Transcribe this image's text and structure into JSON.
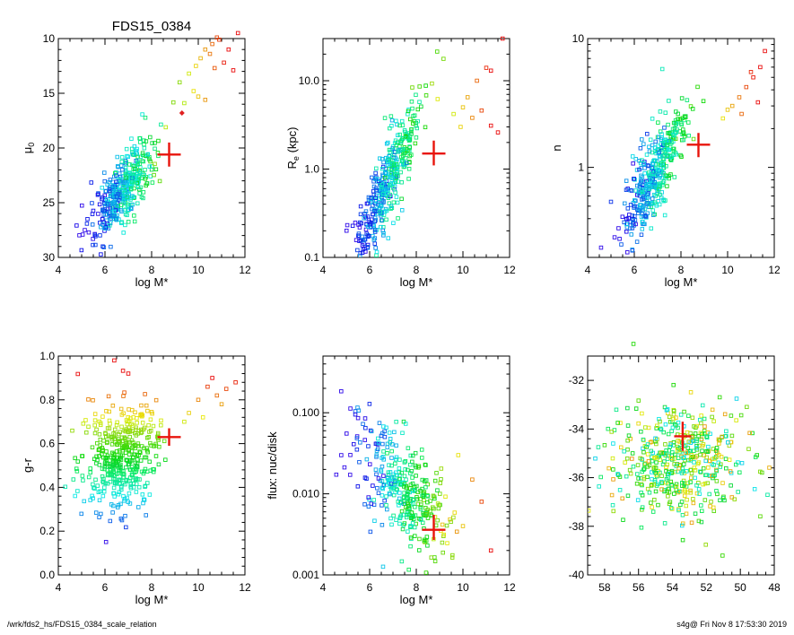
{
  "page": {
    "title": "FDS15_0384",
    "footer_left": "/wrk/fds2_hs/FDS15_0384_scale_relation",
    "footer_right": "s4g@  Fri Nov  8 17:53:30 2019"
  },
  "chart_data": [
    {
      "id": "mu0",
      "type": "scatter",
      "title": "FDS15_0384",
      "xlabel": "log M*",
      "ylabel": "μ0",
      "xlim": [
        4,
        12
      ],
      "ylim": [
        30,
        10
      ],
      "y_inverted": true,
      "xticks": [
        4,
        6,
        8,
        10,
        12
      ],
      "yticks": [
        10,
        15,
        20,
        25,
        30
      ],
      "cloud": {
        "x_center": 6.7,
        "x_spread": 0.7,
        "y_center": 24.0,
        "y_spread": 1.5,
        "slope": -2.5,
        "count": 420
      },
      "tail": [
        [
          9.2,
          14.0
        ],
        [
          9.6,
          13.2
        ],
        [
          9.9,
          12.5
        ],
        [
          10.1,
          11.8
        ],
        [
          10.3,
          11.0
        ],
        [
          10.6,
          10.5
        ],
        [
          10.8,
          9.9
        ],
        [
          11.1,
          12.2
        ],
        [
          11.5,
          12.9
        ],
        [
          10.0,
          15.3
        ],
        [
          10.3,
          15.6
        ],
        [
          9.8,
          14.8
        ],
        [
          11.7,
          9.5
        ],
        [
          10.9,
          10.1
        ],
        [
          10.5,
          11.4
        ],
        [
          9.4,
          15.9
        ],
        [
          11.3,
          11.0
        ],
        [
          10.7,
          12.7
        ]
      ],
      "highlight": {
        "x": 8.75,
        "y": 20.6,
        "xerr": 0.5,
        "yerr": 1.1
      },
      "diamond": {
        "x": 9.3,
        "y": 16.8
      }
    },
    {
      "id": "re",
      "type": "scatter",
      "xlabel": "log M*",
      "ylabel": "Re (kpc)",
      "ylabel_main": "R",
      "ylabel_sub": "e",
      "ylabel_rest": " (kpc)",
      "xlim": [
        4,
        12
      ],
      "ylim": [
        0.1,
        30
      ],
      "ylog": true,
      "xticks": [
        4,
        6,
        8,
        10,
        12
      ],
      "yticks": [
        0.1,
        1.0,
        10.0
      ],
      "ytick_labels": [
        "0.1",
        "1.0",
        "10.0"
      ],
      "cloud": {
        "x_center": 6.8,
        "x_spread": 0.7,
        "y_center": 0.72,
        "y_spread": 0.6,
        "slope": 0.55,
        "log": true,
        "count": 420
      },
      "tail": [
        [
          9.6,
          4.2
        ],
        [
          10.0,
          5.0
        ],
        [
          10.4,
          3.8
        ],
        [
          10.8,
          4.6
        ],
        [
          11.2,
          3.1
        ],
        [
          11.5,
          2.6
        ],
        [
          11.7,
          30.0
        ],
        [
          11.2,
          13.0
        ],
        [
          11.0,
          14.0
        ],
        [
          10.6,
          10.0
        ],
        [
          10.2,
          6.5
        ],
        [
          9.9,
          3.0
        ]
      ],
      "highlight": {
        "x": 8.75,
        "y": 1.5,
        "xerr": 0.5,
        "yerr_low": 1.1,
        "yerr_high": 2.1
      }
    },
    {
      "id": "n",
      "type": "scatter",
      "xlabel": "log M*",
      "ylabel": "n",
      "xlim": [
        4,
        12
      ],
      "ylim": [
        0.2,
        10
      ],
      "ylog": true,
      "xticks": [
        4,
        6,
        8,
        10,
        12
      ],
      "yticks": [
        1,
        10
      ],
      "ytick_labels": [
        "1",
        "10"
      ],
      "cloud": {
        "x_center": 6.8,
        "x_spread": 0.7,
        "y_center": 0.85,
        "y_spread": 0.45,
        "slope": 0.3,
        "log": true,
        "count": 420
      },
      "tail": [
        [
          10.2,
          3.0
        ],
        [
          10.5,
          3.5
        ],
        [
          10.8,
          4.2
        ],
        [
          11.1,
          5.0
        ],
        [
          11.4,
          6.0
        ],
        [
          11.6,
          8.0
        ],
        [
          11.0,
          5.5
        ],
        [
          10.6,
          2.6
        ],
        [
          9.8,
          2.4
        ],
        [
          10.0,
          2.8
        ],
        [
          11.3,
          3.2
        ],
        [
          7.2,
          5.8
        ]
      ],
      "highlight": {
        "x": 8.75,
        "y": 1.5,
        "xerr": 0.5,
        "yerr_low": 1.2,
        "yerr_high": 1.85
      }
    },
    {
      "id": "gr",
      "type": "scatter",
      "xlabel": "log M*",
      "ylabel": "g-r",
      "xlim": [
        4,
        12
      ],
      "ylim": [
        0.0,
        1.0
      ],
      "xticks": [
        4,
        6,
        8,
        10,
        12
      ],
      "yticks": [
        0.0,
        0.2,
        0.4,
        0.6,
        0.8,
        1.0
      ],
      "ytick_labels": [
        "0.0",
        "0.2",
        "0.4",
        "0.6",
        "0.8",
        "1.0"
      ],
      "cloud": {
        "x_center": 6.7,
        "x_spread": 0.8,
        "y_center": 0.55,
        "y_spread": 0.12,
        "slope": 0.03,
        "count": 420
      },
      "tail": [
        [
          9.6,
          0.74
        ],
        [
          10.0,
          0.8
        ],
        [
          10.4,
          0.86
        ],
        [
          10.8,
          0.82
        ],
        [
          11.2,
          0.85
        ],
        [
          11.6,
          0.88
        ],
        [
          11.0,
          0.78
        ],
        [
          10.2,
          0.72
        ],
        [
          9.4,
          0.7
        ],
        [
          7.0,
          0.92
        ],
        [
          6.4,
          0.98
        ],
        [
          10.6,
          0.9
        ]
      ],
      "highlight": {
        "x": 8.75,
        "y": 0.63,
        "xerr": 0.5,
        "yerr": 0.04
      }
    },
    {
      "id": "flux",
      "type": "scatter",
      "xlabel": "log M*",
      "ylabel": "flux: nuc/disk",
      "xlim": [
        4,
        12
      ],
      "ylim": [
        0.001,
        0.5
      ],
      "ylog": true,
      "xticks": [
        4,
        6,
        8,
        10,
        12
      ],
      "yticks": [
        0.001,
        0.01,
        0.1
      ],
      "ytick_labels": [
        "0.001",
        "0.010",
        "0.100"
      ],
      "cloud": {
        "x_center": 7.4,
        "x_spread": 1.0,
        "y_center": 0.012,
        "y_spread": 0.9,
        "slope": -0.25,
        "log": true,
        "count": 360
      },
      "tail": [
        [
          10.4,
          0.015
        ],
        [
          10.8,
          0.008
        ],
        [
          11.2,
          0.002
        ],
        [
          10.0,
          0.004
        ],
        [
          9.8,
          0.03
        ]
      ],
      "highlight": {
        "x": 8.75,
        "y": 0.0036,
        "xerr": 0.5,
        "yerr_low": 0.0027,
        "yerr_high": 0.0055
      }
    },
    {
      "id": "sky",
      "type": "scatter",
      "xlabel": "",
      "ylabel": "",
      "xlim": [
        59,
        48
      ],
      "ylim": [
        -40,
        -31
      ],
      "xticks": [
        58,
        56,
        54,
        52,
        50,
        48
      ],
      "yticks": [
        -40,
        -38,
        -36,
        -34,
        -32
      ],
      "cloud": {
        "x_center": 53.6,
        "x_spread": 1.9,
        "y_center": -35.4,
        "y_spread": 1.15,
        "slope": 0.0,
        "count": 480
      },
      "tail": [
        [
          56.3,
          -30.5
        ]
      ],
      "highlight": {
        "x": 53.4,
        "y": -34.3,
        "xerr": 0.5,
        "yerr": 0.6
      }
    }
  ]
}
